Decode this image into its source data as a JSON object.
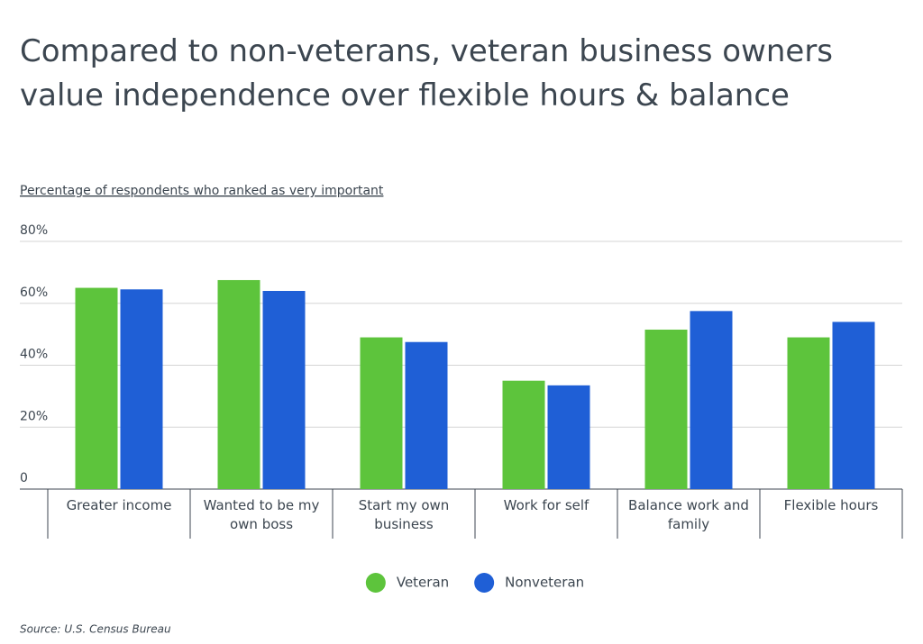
{
  "chart_data": {
    "type": "bar",
    "title": "Compared to non-veterans, veteran business owners value independence over flexible hours & balance",
    "subtitle": "Percentage of respondents who ranked as very important",
    "categories": [
      "Greater income",
      "Wanted to be my own boss",
      "Start my own business",
      "Work for self",
      "Balance work and family",
      "Flexible hours"
    ],
    "series": [
      {
        "name": "Veteran",
        "color": "#5dc43c",
        "values": [
          65,
          67.5,
          49,
          35,
          51.5,
          49
        ]
      },
      {
        "name": "Nonveteran",
        "color": "#1f5fd6",
        "values": [
          64.5,
          64,
          47.5,
          33.5,
          57.5,
          54
        ]
      }
    ],
    "ylim": [
      0,
      80
    ],
    "yticks": [
      0,
      {
        "value": 20,
        "label": "20%"
      },
      {
        "value": 40,
        "label": "40%"
      },
      {
        "value": 60,
        "label": "60%"
      },
      {
        "value": 80,
        "label": "80%"
      }
    ],
    "grid": true,
    "legend": "bottom",
    "source": "Source: U.S. Census Bureau"
  }
}
